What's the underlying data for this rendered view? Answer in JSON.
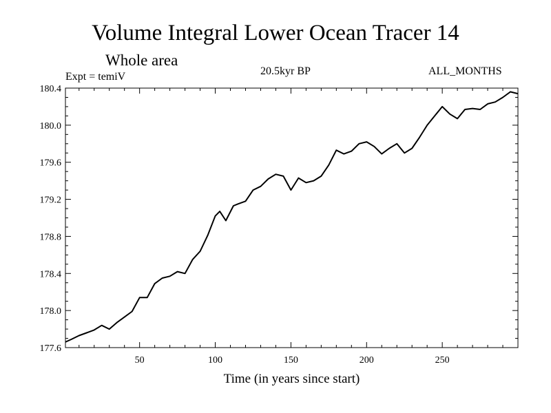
{
  "chart_data": {
    "type": "line",
    "title": "Volume Integral Lower Ocean Tracer 14",
    "subtitle": "Whole area",
    "annotations": {
      "expt": "Expt = temiV",
      "period": "20.5kyr BP",
      "months": "ALL_MONTHS"
    },
    "xlabel": "Time (in years since start)",
    "ylabel": "",
    "xlim": [
      1,
      300
    ],
    "ylim": [
      177.6,
      180.4
    ],
    "xticks": [
      50,
      100,
      150,
      200,
      250
    ],
    "yticks": [
      "177.6",
      "178.0",
      "178.4",
      "178.8",
      "179.2",
      "179.6",
      "180.0",
      "180.4"
    ],
    "series": [
      {
        "name": "Tracer 14",
        "x": [
          1,
          5,
          10,
          15,
          20,
          25,
          30,
          35,
          40,
          45,
          50,
          55,
          60,
          65,
          70,
          75,
          80,
          85,
          90,
          95,
          100,
          103,
          107,
          112,
          115,
          120,
          125,
          130,
          135,
          140,
          145,
          150,
          155,
          160,
          165,
          170,
          175,
          180,
          185,
          190,
          195,
          200,
          205,
          210,
          215,
          220,
          225,
          230,
          235,
          240,
          245,
          250,
          255,
          260,
          265,
          270,
          275,
          280,
          285,
          290,
          295,
          300
        ],
        "values": [
          177.66,
          177.69,
          177.73,
          177.76,
          177.79,
          177.84,
          177.8,
          177.87,
          177.93,
          177.99,
          178.14,
          178.14,
          178.29,
          178.35,
          178.37,
          178.42,
          178.4,
          178.55,
          178.64,
          178.81,
          179.02,
          179.07,
          178.97,
          179.13,
          179.15,
          179.18,
          179.3,
          179.34,
          179.42,
          179.47,
          179.45,
          179.3,
          179.43,
          179.38,
          179.4,
          179.45,
          179.57,
          179.73,
          179.69,
          179.72,
          179.8,
          179.82,
          179.77,
          179.69,
          179.75,
          179.8,
          179.7,
          179.75,
          179.87,
          180.0,
          180.1,
          180.2,
          180.12,
          180.07,
          180.17,
          180.18,
          180.17,
          180.23,
          180.25,
          180.3,
          180.36,
          180.34
        ]
      }
    ]
  }
}
